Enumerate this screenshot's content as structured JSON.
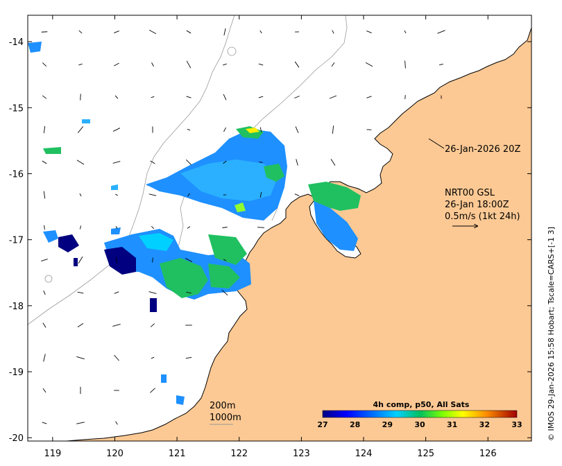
{
  "chart_data": {
    "type": "heatmap",
    "title": "",
    "xlabel": "",
    "ylabel": "",
    "xlim": [
      118.6,
      126.7
    ],
    "ylim": [
      -20.05,
      -13.6
    ],
    "x_ticks": [
      "119",
      "120",
      "121",
      "122",
      "123",
      "124",
      "125",
      "126"
    ],
    "y_ticks": [
      "-14",
      "-15",
      "-16",
      "-17",
      "-18",
      "-19",
      "-20"
    ],
    "x_tick_values": [
      119,
      120,
      121,
      122,
      123,
      124,
      125,
      126
    ],
    "y_tick_values": [
      -14,
      -15,
      -16,
      -17,
      -18,
      -19,
      -20
    ],
    "colorbar": {
      "title": "4h comp, p50, All Sats",
      "labels": [
        "27",
        "28",
        "29",
        "30",
        "31",
        "32",
        "33"
      ],
      "min": 27,
      "max": 33
    },
    "annotations": {
      "time_label": "26-Jan-2026 20Z",
      "product_line1": "NRT00 GSL",
      "product_line2": "26-Jan 18:00Z",
      "product_line3": "0.5m/s (1kt 24h)",
      "depth_200": "200m",
      "depth_1000": "1000m"
    },
    "credit": "© IMOS 29-Jan-2026 15:58 Hobart; Tscale=CARS+[-1 3]",
    "colors": {
      "land": "#fcc994",
      "coast": "#000000",
      "isobath": "#999999"
    }
  }
}
